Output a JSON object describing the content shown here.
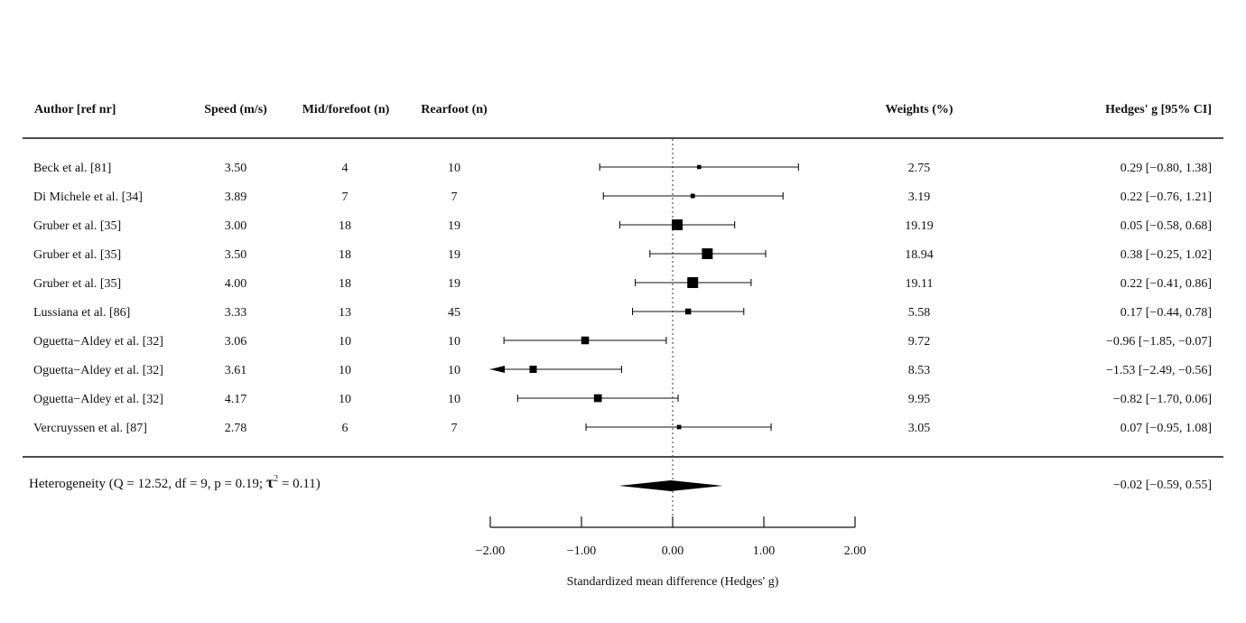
{
  "chart_data": {
    "type": "forest",
    "columns": {
      "author": "Author [ref nr]",
      "speed": "Speed (m/s)",
      "midforefoot": "Mid/forefoot (n)",
      "rearfoot": "Rearfoot (n)",
      "weights": "Weights (%)",
      "effect": "Hedges' g [95% CI]"
    },
    "studies": [
      {
        "author": "Beck et al. [81]",
        "speed": "3.50",
        "midforefoot": "4",
        "rearfoot": "10",
        "weight": "2.75",
        "g": 0.29,
        "lo": -0.8,
        "hi": 1.38,
        "effect_text": "0.29 [−0.80,  1.38]"
      },
      {
        "author": "Di Michele et al. [34]",
        "speed": "3.89",
        "midforefoot": "7",
        "rearfoot": "7",
        "weight": "3.19",
        "g": 0.22,
        "lo": -0.76,
        "hi": 1.21,
        "effect_text": "0.22 [−0.76,  1.21]"
      },
      {
        "author": "Gruber et al. [35]",
        "speed": "3.00",
        "midforefoot": "18",
        "rearfoot": "19",
        "weight": "19.19",
        "g": 0.05,
        "lo": -0.58,
        "hi": 0.68,
        "effect_text": "0.05 [−0.58,  0.68]"
      },
      {
        "author": "Gruber et al. [35]",
        "speed": "3.50",
        "midforefoot": "18",
        "rearfoot": "19",
        "weight": "18.94",
        "g": 0.38,
        "lo": -0.25,
        "hi": 1.02,
        "effect_text": "0.38 [−0.25,  1.02]"
      },
      {
        "author": "Gruber et al. [35]",
        "speed": "4.00",
        "midforefoot": "18",
        "rearfoot": "19",
        "weight": "19.11",
        "g": 0.22,
        "lo": -0.41,
        "hi": 0.86,
        "effect_text": "0.22 [−0.41,  0.86]"
      },
      {
        "author": "Lussiana et al. [86]",
        "speed": "3.33",
        "midforefoot": "13",
        "rearfoot": "45",
        "weight": "5.58",
        "g": 0.17,
        "lo": -0.44,
        "hi": 0.78,
        "effect_text": "0.17 [−0.44,  0.78]"
      },
      {
        "author": "Oguetta−Aldey et al. [32]",
        "speed": "3.06",
        "midforefoot": "10",
        "rearfoot": "10",
        "weight": "9.72",
        "g": -0.96,
        "lo": -1.85,
        "hi": -0.07,
        "effect_text": "−0.96 [−1.85, −0.07]"
      },
      {
        "author": "Oguetta−Aldey et al. [32]",
        "speed": "3.61",
        "midforefoot": "10",
        "rearfoot": "10",
        "weight": "8.53",
        "g": -1.53,
        "lo": -2.49,
        "hi": -0.56,
        "effect_text": "−1.53 [−2.49, −0.56]",
        "clipped_low": true
      },
      {
        "author": "Oguetta−Aldey et al. [32]",
        "speed": "4.17",
        "midforefoot": "10",
        "rearfoot": "10",
        "weight": "9.95",
        "g": -0.82,
        "lo": -1.7,
        "hi": 0.06,
        "effect_text": "−0.82 [−1.70,  0.06]"
      },
      {
        "author": "Vercruyssen et al. [87]",
        "speed": "2.78",
        "midforefoot": "6",
        "rearfoot": "7",
        "weight": "3.05",
        "g": 0.07,
        "lo": -0.95,
        "hi": 1.08,
        "effect_text": "0.07 [−0.95,  1.08]"
      }
    ],
    "summary": {
      "label_prefix": "Heterogeneity (Q = 12.52, df = 9, p = 0.19; ",
      "tau_symbol": "τ",
      "tau_sup": "2",
      "label_suffix": " = 0.11)",
      "g": -0.02,
      "lo": -0.59,
      "hi": 0.55,
      "effect_text": "−0.02 [−0.59,  0.55]"
    },
    "x_axis": {
      "label": "Standardized mean difference (Hedges' g)",
      "ticks": [
        -2,
        -1,
        0,
        1,
        2
      ],
      "tick_labels": [
        "−2.00",
        "−1.00",
        "0.00",
        "1.00",
        "2.00"
      ],
      "range": [
        -2,
        2
      ]
    },
    "reference_line": 0
  }
}
